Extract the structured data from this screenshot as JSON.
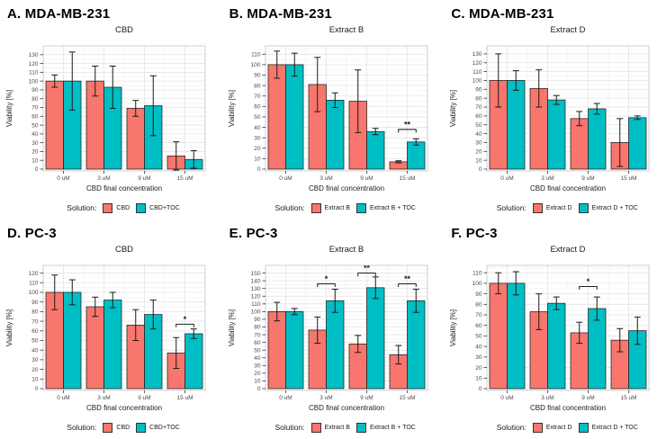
{
  "figure": {
    "background": "#ffffff",
    "bar_colors": {
      "series1": "#F8766D",
      "series2": "#00BFC4"
    },
    "grid_major_color": "#e4e4e4",
    "grid_minor_color": "#f2f2f2",
    "panel_border_color": "#c4c4c4"
  },
  "chart_data": [
    {
      "type": "bar",
      "panel_label": "A. MDA-MB-231",
      "title": "CBD",
      "xlabel": "CBD final concentration",
      "ylabel": "Viability [%]",
      "legend_title": "Solution:",
      "categories": [
        "0 uM",
        "3 uM",
        "9 uM",
        "15 uM"
      ],
      "yticks_max": 130,
      "ytick_step": 10,
      "ymax": 140,
      "series": [
        {
          "name": "CBD",
          "color": "#F8766D",
          "values": [
            100,
            100,
            69,
            15
          ],
          "errors": [
            7,
            17,
            9,
            16
          ]
        },
        {
          "name": "CBD+TOC",
          "color": "#00BFC4",
          "values": [
            100,
            93,
            72,
            11
          ],
          "errors": [
            33,
            24,
            34,
            10
          ]
        }
      ],
      "significance": []
    },
    {
      "type": "bar",
      "panel_label": "B. MDA-MB-231",
      "title": "Extract B",
      "xlabel": "CBD final concentration",
      "ylabel": "Viability [%]",
      "legend_title": "Solution:",
      "categories": [
        "0 uM",
        "3 uM",
        "9 uM",
        "15 uM"
      ],
      "yticks_max": 110,
      "ytick_step": 10,
      "ymax": 118,
      "series": [
        {
          "name": "Extract B",
          "color": "#F8766D",
          "values": [
            100,
            81,
            65,
            7
          ],
          "errors": [
            13,
            26,
            30,
            1
          ]
        },
        {
          "name": "Extract B + TOC",
          "color": "#00BFC4",
          "values": [
            100,
            66,
            36,
            26
          ],
          "errors": [
            11,
            7,
            3,
            3
          ]
        }
      ],
      "significance": [
        {
          "pair_index": 3,
          "label": "**",
          "y": 38
        }
      ]
    },
    {
      "type": "bar",
      "panel_label": "C. MDA-MB-231",
      "title": "Extract D",
      "xlabel": "CBD final concentration",
      "ylabel": "Viability [%]",
      "legend_title": "Solution:",
      "categories": [
        "0 uM",
        "3 uM",
        "9 uM",
        "15 uM"
      ],
      "yticks_max": 130,
      "ytick_step": 10,
      "ymax": 139,
      "series": [
        {
          "name": "Extract D",
          "color": "#F8766D",
          "values": [
            100,
            91,
            57,
            30
          ],
          "errors": [
            30,
            21,
            8,
            27
          ]
        },
        {
          "name": "Extract D + TOC",
          "color": "#00BFC4",
          "values": [
            100,
            78,
            68,
            58
          ],
          "errors": [
            11,
            5,
            6,
            2
          ]
        }
      ],
      "significance": []
    },
    {
      "type": "bar",
      "panel_label": "D. PC-3",
      "title": "CBD",
      "xlabel": "CBD final concentration",
      "ylabel": "Viability [%]",
      "legend_title": "Solution:",
      "categories": [
        "0 uM",
        "3 uM",
        "9 uM",
        "15 uM"
      ],
      "yticks_max": 120,
      "ytick_step": 10,
      "ymax": 128,
      "series": [
        {
          "name": "CBD",
          "color": "#F8766D",
          "values": [
            100,
            85,
            66,
            37
          ],
          "errors": [
            18,
            10,
            16,
            16
          ]
        },
        {
          "name": "CBD+TOC",
          "color": "#00BFC4",
          "values": [
            100,
            92,
            77,
            57
          ],
          "errors": [
            13,
            8,
            15,
            5
          ]
        }
      ],
      "significance": [
        {
          "pair_index": 3,
          "label": "*",
          "y": 67
        }
      ]
    },
    {
      "type": "bar",
      "panel_label": "E. PC-3",
      "title": "Extract B",
      "xlabel": "CBD final concentration",
      "ylabel": "Viability [%]",
      "legend_title": "Solution:",
      "categories": [
        "0 uM",
        "3 uM",
        "9 uM",
        "15 uM"
      ],
      "yticks_max": 150,
      "ytick_step": 10,
      "ymax": 160,
      "series": [
        {
          "name": "Extract B",
          "color": "#F8766D",
          "values": [
            100,
            76,
            58,
            44
          ],
          "errors": [
            12,
            17,
            11,
            12
          ]
        },
        {
          "name": "Extract B + TOC",
          "color": "#00BFC4",
          "values": [
            100,
            114,
            131,
            114
          ],
          "errors": [
            4,
            15,
            14,
            15
          ]
        }
      ],
      "significance": [
        {
          "pair_index": 1,
          "label": "*",
          "y": 136
        },
        {
          "pair_index": 2,
          "label": "**",
          "y": 150
        },
        {
          "pair_index": 3,
          "label": "**",
          "y": 136
        }
      ]
    },
    {
      "type": "bar",
      "panel_label": "F. PC-3",
      "title": "Extract D",
      "xlabel": "CBD final concentration",
      "ylabel": "Viability [%]",
      "legend_title": "Solution:",
      "categories": [
        "0 uM",
        "3 uM",
        "9 uM",
        "15 uM"
      ],
      "yticks_max": 110,
      "ytick_step": 10,
      "ymax": 117,
      "series": [
        {
          "name": "Extract D",
          "color": "#F8766D",
          "values": [
            100,
            73,
            53,
            46
          ],
          "errors": [
            10,
            17,
            10,
            11
          ]
        },
        {
          "name": "Extract D + TOC",
          "color": "#00BFC4",
          "values": [
            100,
            81,
            76,
            55
          ],
          "errors": [
            11,
            6,
            11,
            13
          ]
        }
      ],
      "significance": [
        {
          "pair_index": 2,
          "label": "*",
          "y": 97
        }
      ]
    }
  ]
}
